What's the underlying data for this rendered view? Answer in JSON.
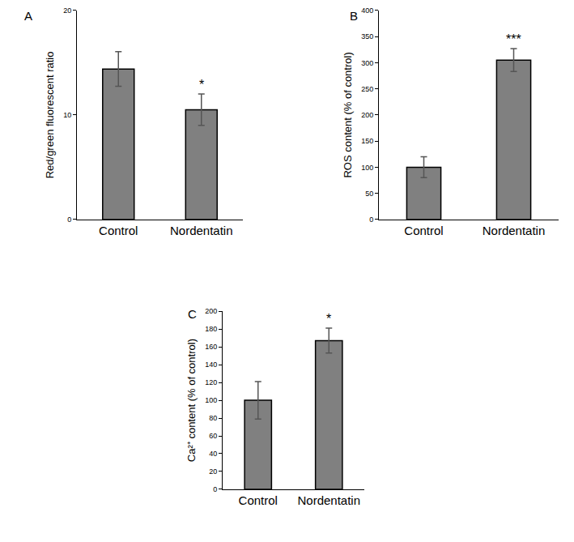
{
  "chart_data": [
    {
      "type": "bar",
      "title": "A",
      "y_label": "Red/green fluorescent ratio",
      "categories": [
        "Control",
        "Nordentatin"
      ],
      "values": [
        14.4,
        10.5
      ],
      "errors": [
        1.65,
        1.5
      ],
      "color": "#808080",
      "ylim": [
        0,
        20
      ],
      "yticks": [
        0,
        10,
        20
      ],
      "grid": false,
      "annotations": [
        {
          "x": "Nordentatin",
          "text": "*"
        }
      ]
    },
    {
      "type": "bar",
      "title": "B",
      "y_label": "ROS content (% of control)",
      "categories": [
        "Control",
        "Nordentatin"
      ],
      "values": [
        100,
        305
      ],
      "errors": [
        20,
        22
      ],
      "color": "#808080",
      "ylim": [
        0,
        400
      ],
      "yticks": [
        0,
        50,
        100,
        150,
        200,
        250,
        300,
        350,
        400
      ],
      "grid": false,
      "annotations": [
        {
          "x": "Nordentatin",
          "text": "***"
        }
      ]
    },
    {
      "type": "bar",
      "title": "C",
      "y_label": "Ca²⁺ content (% of control)",
      "categories": [
        "Control",
        "Nordentatin"
      ],
      "values": [
        100,
        167
      ],
      "errors": [
        21,
        14
      ],
      "color": "#808080",
      "ylim": [
        0,
        200
      ],
      "yticks": [
        0,
        20,
        40,
        60,
        80,
        100,
        120,
        140,
        160,
        180,
        200
      ],
      "grid": false,
      "annotations": [
        {
          "x": "Nordentatin",
          "text": "*"
        }
      ]
    }
  ]
}
